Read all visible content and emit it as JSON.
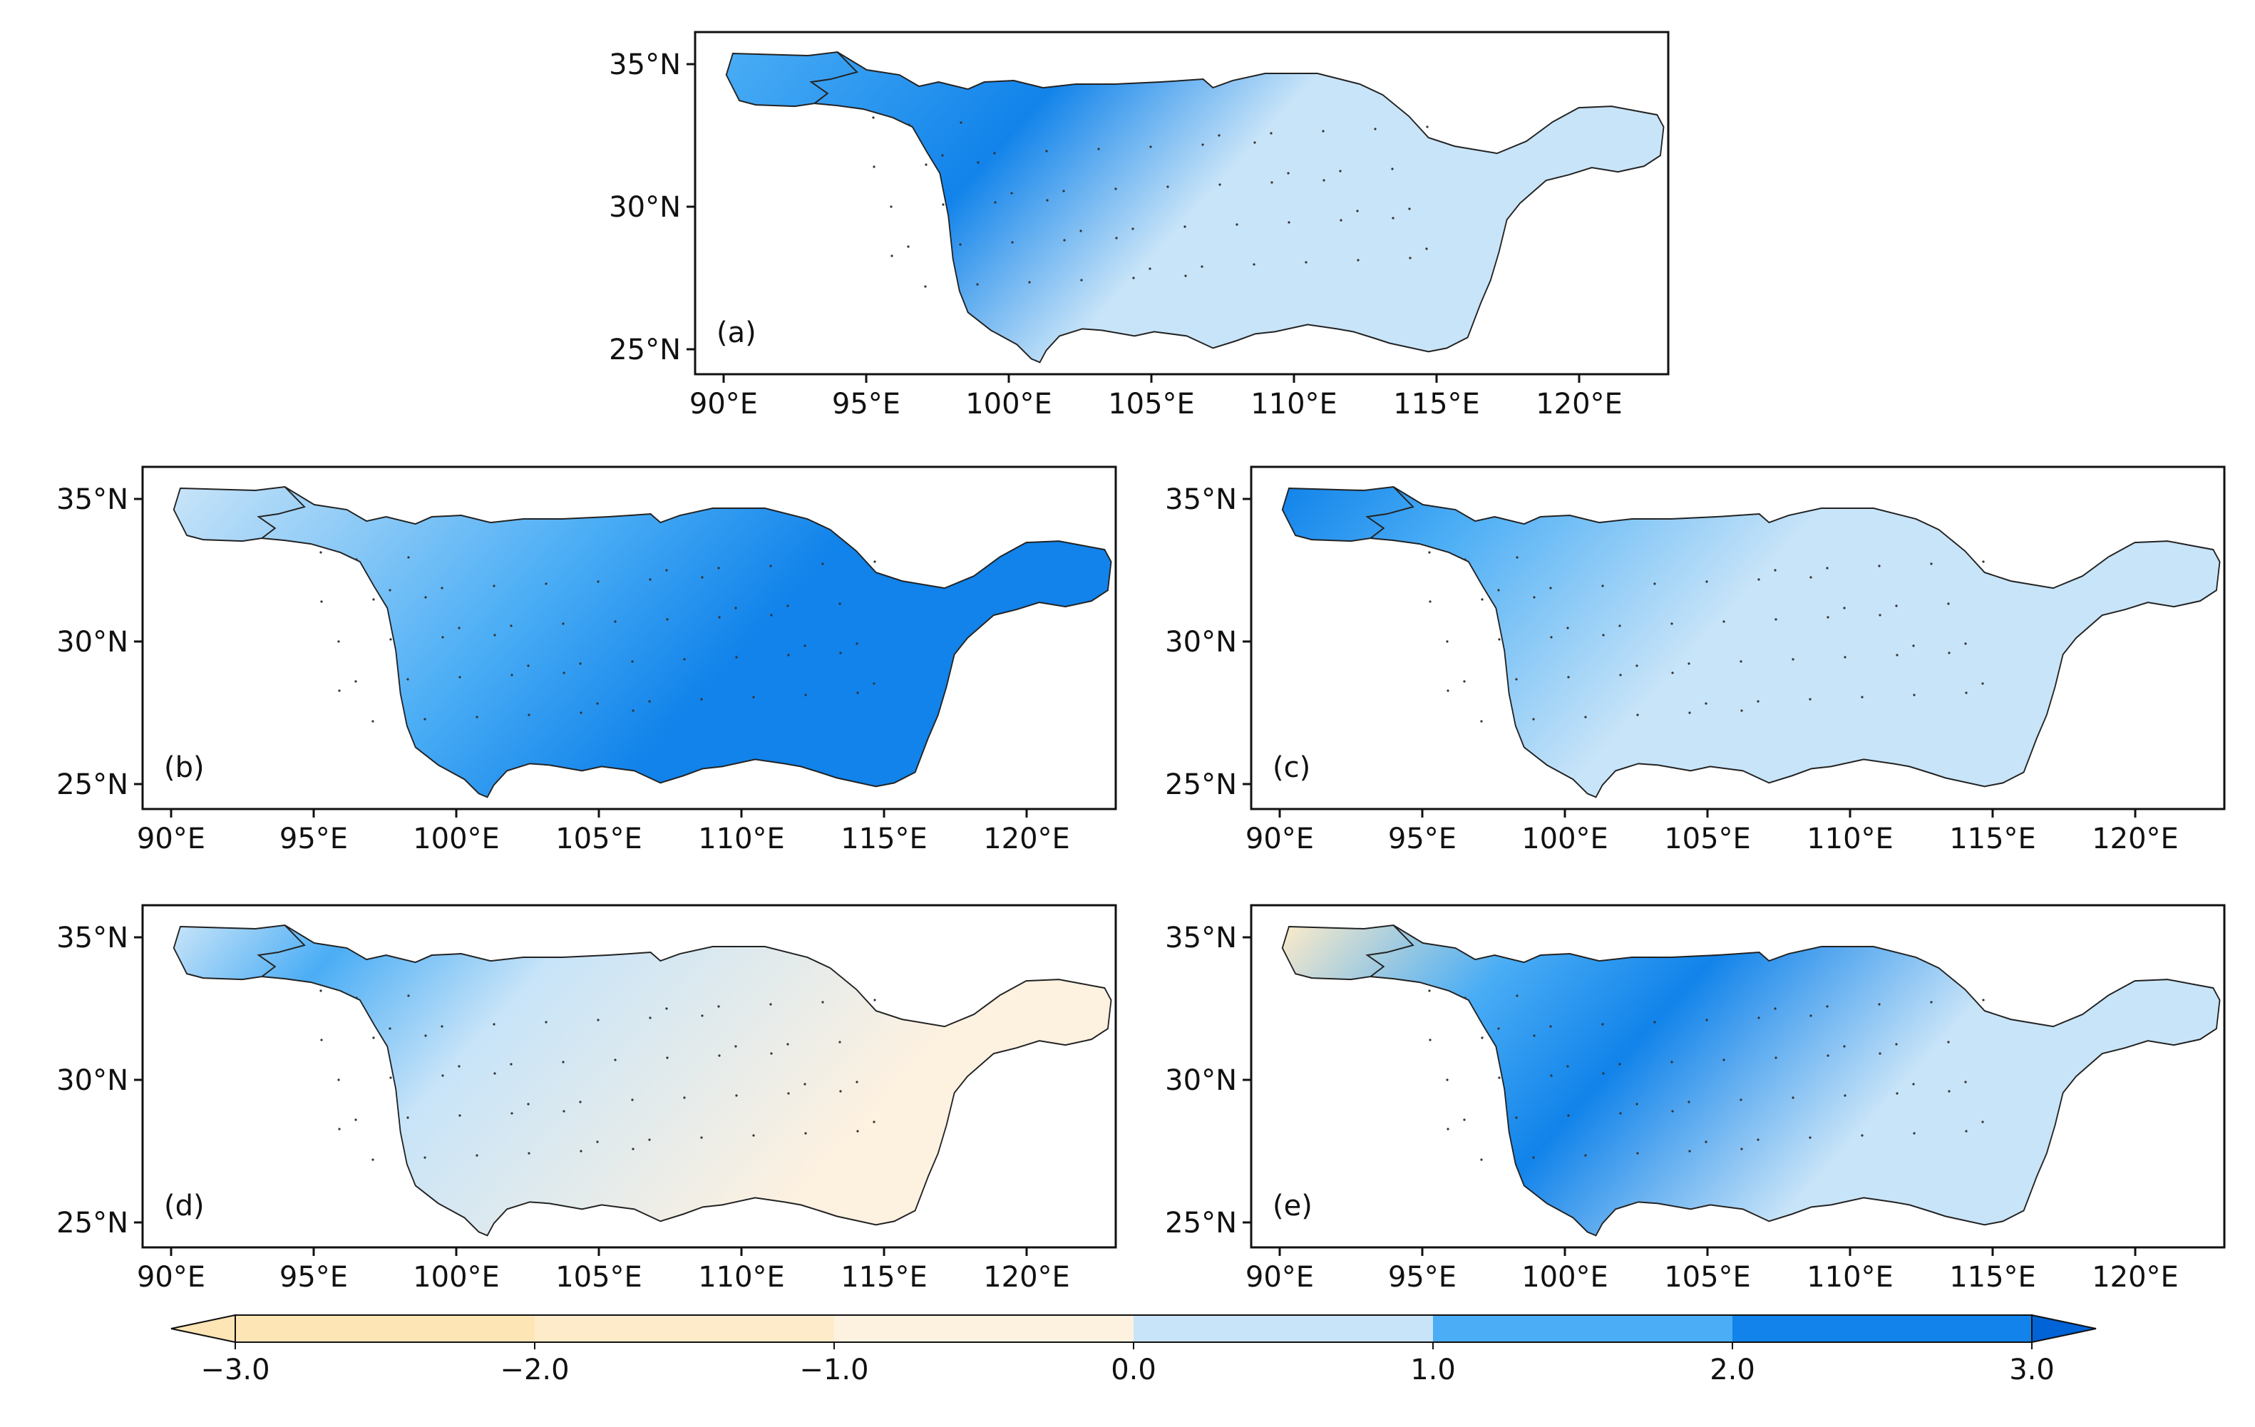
{
  "figure": {
    "panels": [
      {
        "id": "a",
        "label": "(a)"
      },
      {
        "id": "b",
        "label": "(b)"
      },
      {
        "id": "c",
        "label": "(c)"
      },
      {
        "id": "d",
        "label": "(d)"
      },
      {
        "id": "e",
        "label": "(e)"
      }
    ],
    "lon_ticks": [
      "90°E",
      "95°E",
      "100°E",
      "105°E",
      "110°E",
      "115°E",
      "120°E"
    ],
    "lat_ticks": [
      "35°N",
      "30°N",
      "25°N"
    ],
    "colorbar": {
      "tick_labels": [
        "−3.0",
        "−2.0",
        "−1.0",
        "0.0",
        "1.0",
        "2.0",
        "3.0"
      ],
      "levels": [
        -3,
        -2,
        -1,
        0,
        1,
        2,
        3
      ],
      "colors": [
        "#fde5b5",
        "#fdebc9",
        "#fdf1e0",
        "#c8e4f8",
        "#4aadf5",
        "#1183ea"
      ],
      "extend": "both"
    },
    "palette": {
      "neg_strong": "#fde5b5",
      "neg_mid": "#fdebc9",
      "neg_weak": "#fdf1e0",
      "pos_weak": "#c8e4f8",
      "pos_mid": "#4aadf5",
      "pos_strong": "#1183ea",
      "stipple": "#333333",
      "outline": "#222222"
    }
  }
}
